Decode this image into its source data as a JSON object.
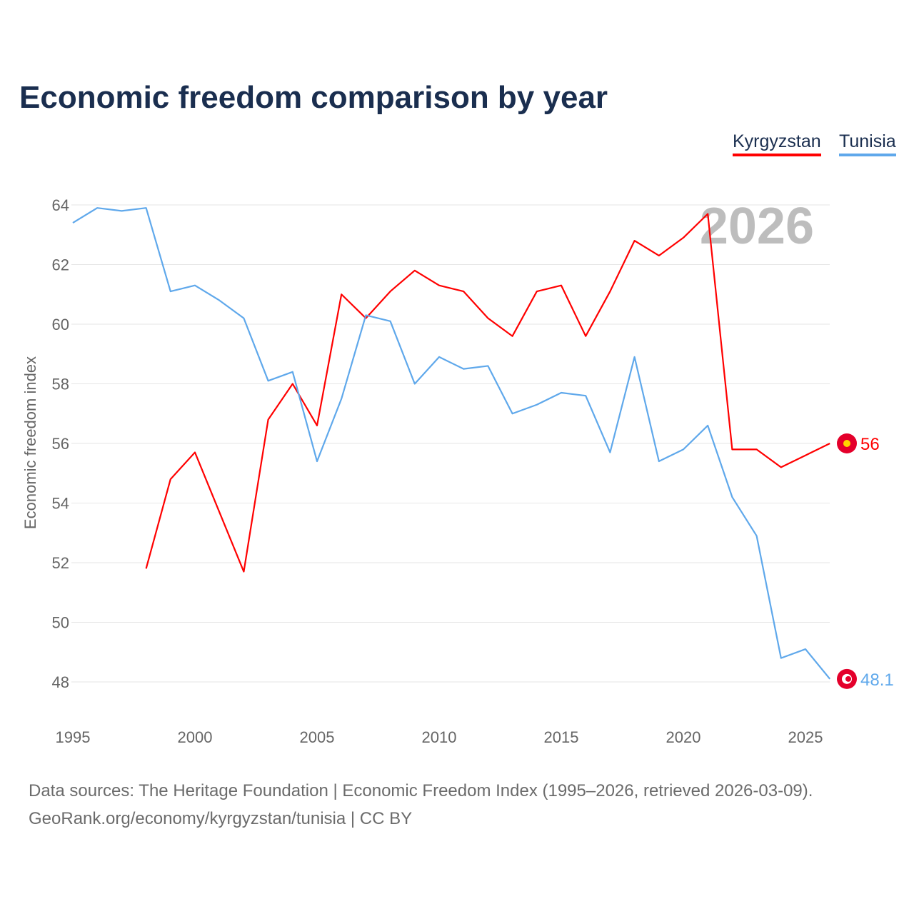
{
  "chart_data": {
    "type": "line",
    "title": "Economic freedom comparison by year",
    "xlabel": "",
    "ylabel": "Economic freedom index",
    "xlim": [
      1995,
      2026
    ],
    "ylim": [
      47,
      65
    ],
    "x_ticks": [
      1995,
      2000,
      2005,
      2010,
      2015,
      2020,
      2025
    ],
    "y_ticks": [
      48,
      50,
      52,
      54,
      56,
      58,
      60,
      62,
      64
    ],
    "grid": true,
    "legend_position": "top-right",
    "watermark_year": "2026",
    "series": [
      {
        "name": "Kyrgyzstan",
        "color": "#ff0000",
        "end_label": "56",
        "flag": "kyrgyzstan-flag",
        "x": [
          1998,
          1999,
          2000,
          2001,
          2002,
          2003,
          2004,
          2005,
          2006,
          2007,
          2008,
          2009,
          2010,
          2011,
          2012,
          2013,
          2014,
          2015,
          2016,
          2017,
          2018,
          2019,
          2020,
          2021,
          2022,
          2023,
          2024,
          2025,
          2026
        ],
        "values": [
          51.8,
          54.8,
          55.7,
          53.7,
          51.7,
          56.8,
          58.0,
          56.6,
          61.0,
          60.2,
          61.1,
          61.8,
          61.3,
          61.1,
          60.2,
          59.6,
          61.1,
          61.3,
          59.6,
          61.1,
          62.8,
          62.3,
          62.9,
          63.7,
          55.8,
          55.8,
          55.2,
          55.6,
          56.0
        ]
      },
      {
        "name": "Tunisia",
        "color": "#5fa8eb",
        "end_label": "48.1",
        "flag": "tunisia-flag",
        "x": [
          1995,
          1996,
          1997,
          1998,
          1999,
          2000,
          2001,
          2002,
          2003,
          2004,
          2005,
          2006,
          2007,
          2008,
          2009,
          2010,
          2011,
          2012,
          2013,
          2014,
          2015,
          2016,
          2017,
          2018,
          2019,
          2020,
          2021,
          2022,
          2023,
          2024,
          2025,
          2026
        ],
        "values": [
          63.4,
          63.9,
          63.8,
          63.9,
          61.1,
          61.3,
          60.8,
          60.2,
          58.1,
          58.4,
          55.4,
          57.5,
          60.3,
          60.1,
          58.0,
          58.9,
          58.5,
          58.6,
          57.0,
          57.3,
          57.7,
          57.6,
          55.7,
          58.9,
          55.4,
          55.8,
          56.6,
          54.2,
          52.9,
          48.8,
          49.1,
          48.1
        ]
      }
    ]
  },
  "source": {
    "line1": "Data sources: The Heritage Foundation | Economic Freedom Index (1995–2026, retrieved 2026-03-09).",
    "line2": "GeoRank.org/economy/kyrgyzstan/tunisia | CC BY"
  }
}
